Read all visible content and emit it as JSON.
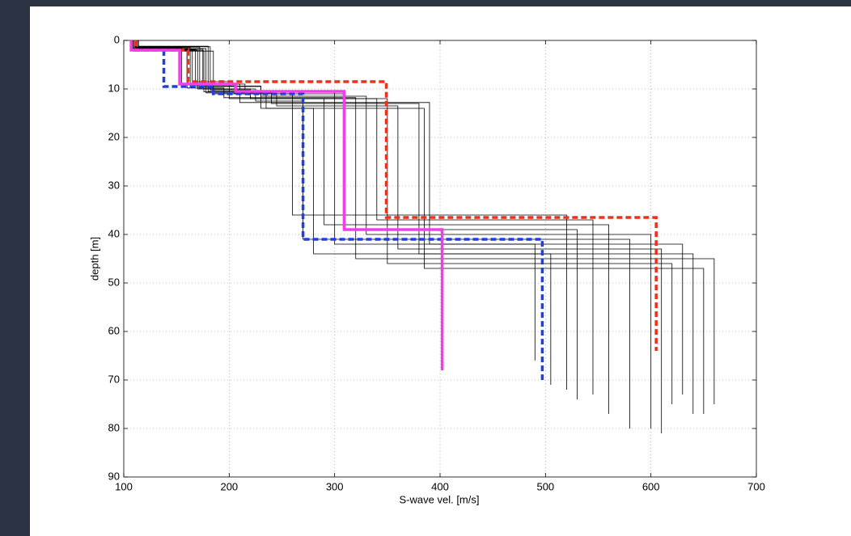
{
  "chart_data": {
    "type": "step-profile",
    "xlabel": "S-wave vel. [m/s]",
    "ylabel": "depth [m]",
    "xlim": [
      100,
      700
    ],
    "xticks": [
      100,
      200,
      300,
      400,
      500,
      600,
      700
    ],
    "ylim": [
      0,
      90
    ],
    "yticks": [
      0,
      10,
      20,
      30,
      40,
      50,
      60,
      70,
      80,
      90
    ],
    "y_inverted": true,
    "grid": true,
    "series": [
      {
        "color": "#000000",
        "dashed": false,
        "x": [
          110,
          110,
          160,
          160,
          210,
          210,
          260,
          260,
          520,
          520
        ],
        "values": [
          0,
          1.5,
          1.5,
          9,
          9,
          11,
          11,
          36,
          36,
          72
        ]
      },
      {
        "color": "#000000",
        "dashed": false,
        "x": [
          112,
          112,
          170,
          170,
          220,
          220,
          290,
          290,
          560,
          560
        ],
        "values": [
          0,
          2,
          2,
          10,
          10,
          12,
          12,
          38,
          38,
          77
        ]
      },
      {
        "color": "#000000",
        "dashed": false,
        "x": [
          108,
          108,
          175,
          175,
          230,
          230,
          330,
          330,
          600,
          600
        ],
        "values": [
          0,
          1.8,
          1.8,
          9.5,
          9.5,
          11.5,
          11.5,
          40,
          40,
          80
        ]
      },
      {
        "color": "#000000",
        "dashed": false,
        "x": [
          114,
          114,
          180,
          180,
          240,
          240,
          380,
          380,
          640,
          640
        ],
        "values": [
          0,
          1.2,
          1.2,
          10.5,
          10.5,
          13,
          13,
          44,
          44,
          77
        ]
      },
      {
        "color": "#000000",
        "dashed": false,
        "x": [
          110,
          110,
          165,
          165,
          200,
          200,
          350,
          350,
          620,
          620
        ],
        "values": [
          0,
          2,
          2,
          8.5,
          8.5,
          12,
          12,
          46,
          46,
          75
        ]
      },
      {
        "color": "#000000",
        "dashed": false,
        "x": [
          113,
          113,
          155,
          155,
          215,
          215,
          300,
          300,
          490,
          490
        ],
        "values": [
          0,
          1.6,
          1.6,
          9,
          9,
          10.5,
          10.5,
          42,
          42,
          66
        ]
      },
      {
        "color": "#000000",
        "dashed": false,
        "x": [
          109,
          109,
          185,
          185,
          235,
          235,
          385,
          385,
          650,
          650
        ],
        "values": [
          0,
          2.2,
          2.2,
          11,
          11,
          14,
          14,
          47,
          47,
          77
        ]
      },
      {
        "color": "#000000",
        "dashed": false,
        "x": [
          111,
          111,
          172,
          172,
          225,
          225,
          270,
          270,
          580,
          580
        ],
        "values": [
          0,
          1.4,
          1.4,
          10,
          10,
          12.5,
          12.5,
          41,
          41,
          80
        ]
      },
      {
        "color": "#000000",
        "dashed": false,
        "x": [
          112,
          112,
          168,
          168,
          205,
          205,
          310,
          310,
          530,
          530
        ],
        "values": [
          0,
          1.9,
          1.9,
          9.2,
          9.2,
          11,
          11,
          39,
          39,
          74
        ]
      },
      {
        "color": "#000000",
        "dashed": false,
        "x": [
          110,
          110,
          178,
          178,
          245,
          245,
          360,
          360,
          610,
          610
        ],
        "values": [
          0,
          1.7,
          1.7,
          10.8,
          10.8,
          13.5,
          13.5,
          43,
          43,
          81
        ]
      },
      {
        "color": "#000000",
        "dashed": false,
        "x": [
          107,
          107,
          160,
          160,
          195,
          195,
          320,
          320,
          660,
          660
        ],
        "values": [
          0,
          2,
          2,
          9.8,
          9.8,
          11.8,
          11.8,
          45,
          45,
          75
        ]
      },
      {
        "color": "#000000",
        "dashed": false,
        "x": [
          113,
          113,
          182,
          182,
          220,
          220,
          340,
          340,
          545,
          545
        ],
        "values": [
          0,
          1.3,
          1.3,
          10.2,
          10.2,
          12,
          12,
          37,
          37,
          73
        ]
      },
      {
        "color": "#000000",
        "dashed": false,
        "x": [
          111,
          111,
          163,
          163,
          230,
          230,
          280,
          280,
          505,
          505
        ],
        "values": [
          0,
          1.5,
          1.5,
          9.4,
          9.4,
          14,
          14,
          44,
          44,
          71
        ]
      },
      {
        "color": "#000000",
        "dashed": false,
        "x": [
          109,
          109,
          176,
          176,
          210,
          210,
          390,
          390,
          630,
          630
        ],
        "values": [
          0,
          2.1,
          2.1,
          10.6,
          10.6,
          12.8,
          12.8,
          42,
          42,
          73
        ]
      },
      {
        "color": "#e8321e",
        "dashed": true,
        "x": [
          111,
          111,
          161,
          161,
          349,
          349,
          605,
          605
        ],
        "values": [
          0,
          2,
          2,
          8.5,
          8.5,
          36.5,
          36.5,
          64
        ]
      },
      {
        "color": "#1f3fe0",
        "dashed": true,
        "x": [
          138,
          138,
          185,
          185,
          270,
          270,
          497,
          497
        ],
        "values": [
          2,
          9.5,
          9.5,
          11,
          11,
          41,
          41,
          70
        ]
      },
      {
        "color": "#f03ee8",
        "dashed": false,
        "x": [
          107,
          107,
          153,
          153,
          206,
          206,
          309,
          309,
          402,
          402
        ],
        "values": [
          0,
          2,
          2,
          9,
          9,
          10.5,
          10.5,
          39,
          39,
          68
        ]
      }
    ]
  }
}
